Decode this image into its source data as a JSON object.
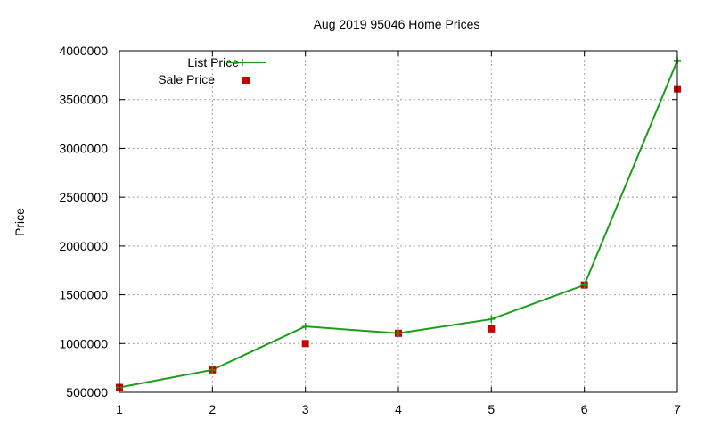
{
  "chart_data": {
    "type": "line",
    "title": "Aug 2019 95046 Home Prices",
    "xlabel": "",
    "ylabel": "Price",
    "x": [
      1,
      2,
      3,
      4,
      5,
      6,
      7
    ],
    "xlim": [
      1,
      7
    ],
    "ylim": [
      500000,
      4000000
    ],
    "xticks": [
      "1",
      "2",
      "3",
      "4",
      "5",
      "6",
      "7"
    ],
    "yticks": [
      "500000",
      "1000000",
      "1500000",
      "2000000",
      "2500000",
      "3000000",
      "3500000",
      "4000000"
    ],
    "grid": true,
    "legend_position": "top-left",
    "series": [
      {
        "name": "List Price",
        "style": "line+cross",
        "color": "#1a9e1a",
        "values": [
          550000,
          730000,
          1175000,
          1105000,
          1250000,
          1600000,
          3900000
        ]
      },
      {
        "name": "Sale Price",
        "style": "square-marker",
        "color": "#cc0000",
        "values": [
          550000,
          730000,
          1000000,
          1105000,
          1150000,
          1600000,
          3610000
        ]
      }
    ]
  }
}
